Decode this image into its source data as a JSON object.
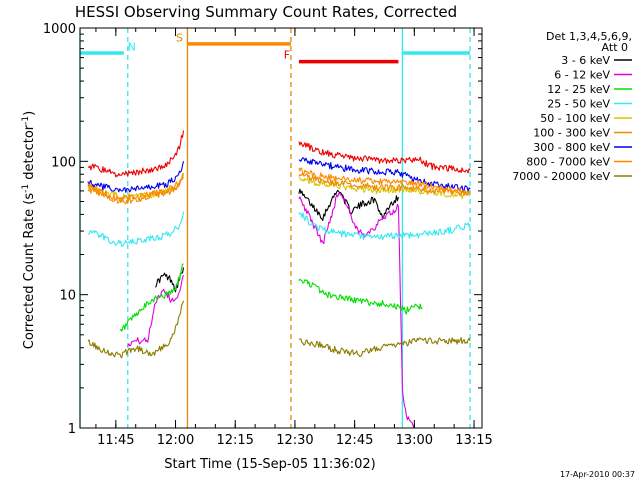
{
  "chart_data": {
    "type": "line",
    "title": "HESSI Observing Summary Count Rates, Corrected",
    "xlabel": "Start Time (15-Sep-05 11:36:02)",
    "ylabel_parts": [
      "Corrected Count Rate (s",
      "-1",
      " detector",
      "-1",
      ")"
    ],
    "yscale": "log",
    "ylim": [
      1,
      1000
    ],
    "xlim": [
      "11:36",
      "13:17"
    ],
    "x_ticks": [
      "11:45",
      "12:00",
      "12:15",
      "12:30",
      "12:45",
      "13:00",
      "13:15"
    ],
    "y_ticks": [
      "1",
      "10",
      "100",
      "1000"
    ],
    "timestamp": "17-Apr-2010 00:37",
    "legend": {
      "position": "right",
      "header": [
        "Det 1,3,4,5,6,9,",
        "Att 0"
      ],
      "entries": [
        {
          "label": "3 - 6 keV",
          "color": "#000000"
        },
        {
          "label": "6 - 12 keV",
          "color": "#e000e0"
        },
        {
          "label": "12 - 25 keV",
          "color": "#00e000"
        },
        {
          "label": "25 - 50 keV",
          "color": "#33e8f0"
        },
        {
          "label": "50 - 100 keV",
          "color": "#d8c400"
        },
        {
          "label": "100 - 300 keV",
          "color": "#f08a00"
        },
        {
          "label": "300 - 800 keV",
          "color": "#0000ee"
        },
        {
          "label": "800 - 7000 keV",
          "color": "#ff8800"
        },
        {
          "label": "7000 - 20000 keV",
          "color": "#8b7d00"
        }
      ]
    },
    "segments": [
      {
        "from": "11:38",
        "to": "12:02"
      },
      {
        "from": "12:31",
        "to": "13:14"
      }
    ],
    "series": [
      {
        "name": "3 - 6 keV",
        "color": "#000000",
        "seg1": [
          [
            "11:55",
            12
          ],
          [
            "11:57",
            14
          ],
          [
            "11:59",
            13
          ],
          [
            "12:00",
            11
          ],
          [
            "12:01",
            13
          ],
          [
            "12:02",
            16
          ]
        ],
        "seg2": [
          [
            "12:31",
            60
          ],
          [
            "12:34",
            48
          ],
          [
            "12:37",
            38
          ],
          [
            "12:39",
            50
          ],
          [
            "12:41",
            62
          ],
          [
            "12:44",
            42
          ],
          [
            "12:47",
            48
          ],
          [
            "12:50",
            52
          ],
          [
            "12:52",
            38
          ],
          [
            "12:54",
            48
          ],
          [
            "12:56",
            54
          ]
        ]
      },
      {
        "name": "6 - 12 keV",
        "color": "#e000e0",
        "seg1": [
          [
            "11:48",
            4.3
          ],
          [
            "11:50",
            4.5
          ],
          [
            "11:53",
            4.5
          ],
          [
            "11:55",
            9
          ],
          [
            "11:57",
            11
          ],
          [
            "11:59",
            9
          ],
          [
            "12:01",
            10
          ],
          [
            "12:02",
            14
          ]
        ],
        "seg2": [
          [
            "12:31",
            55
          ],
          [
            "12:33",
            42
          ],
          [
            "12:35",
            32
          ],
          [
            "12:37",
            24
          ],
          [
            "12:39",
            38
          ],
          [
            "12:41",
            60
          ],
          [
            "12:43",
            48
          ],
          [
            "12:45",
            32
          ],
          [
            "12:47",
            28
          ],
          [
            "12:50",
            32
          ],
          [
            "12:53",
            40
          ],
          [
            "12:55",
            42
          ],
          [
            "12:56",
            48
          ],
          [
            "12:57",
            2
          ],
          [
            "12:58",
            1.2
          ],
          [
            "13:00",
            1
          ]
        ]
      },
      {
        "name": "12 - 25 keV",
        "color": "#00e000",
        "seg1": [
          [
            "11:46",
            5.2
          ],
          [
            "11:49",
            6.5
          ],
          [
            "11:52",
            8
          ],
          [
            "11:55",
            9.5
          ],
          [
            "11:58",
            10
          ],
          [
            "12:00",
            11
          ],
          [
            "12:02",
            17
          ]
        ],
        "seg2": [
          [
            "12:31",
            13
          ],
          [
            "12:34",
            12
          ],
          [
            "12:38",
            10
          ],
          [
            "12:42",
            9.5
          ],
          [
            "12:46",
            9
          ],
          [
            "12:50",
            8.6
          ],
          [
            "12:54",
            8.5
          ],
          [
            "12:58",
            7.5
          ],
          [
            "13:00",
            8.5
          ],
          [
            "13:02",
            8
          ]
        ]
      },
      {
        "name": "25 - 50 keV",
        "color": "#33e8f0",
        "seg1": [
          [
            "11:38",
            30
          ],
          [
            "11:41",
            28
          ],
          [
            "11:44",
            25
          ],
          [
            "11:47",
            24
          ],
          [
            "11:50",
            25
          ],
          [
            "11:53",
            26
          ],
          [
            "11:56",
            27
          ],
          [
            "11:59",
            29
          ],
          [
            "12:01",
            33
          ],
          [
            "12:02",
            42
          ]
        ],
        "seg2": [
          [
            "12:31",
            42
          ],
          [
            "12:34",
            34
          ],
          [
            "12:37",
            31
          ],
          [
            "12:40",
            29
          ],
          [
            "12:44",
            28
          ],
          [
            "12:48",
            27
          ],
          [
            "12:52",
            27
          ],
          [
            "12:56",
            28
          ],
          [
            "13:00",
            28
          ],
          [
            "13:04",
            29
          ],
          [
            "13:08",
            30
          ],
          [
            "13:12",
            32
          ],
          [
            "13:14",
            34
          ]
        ]
      },
      {
        "name": "50 - 100 keV",
        "color": "#d8c400",
        "seg1": [
          [
            "11:38",
            65
          ],
          [
            "11:42",
            58
          ],
          [
            "11:46",
            55
          ],
          [
            "11:50",
            54
          ],
          [
            "11:54",
            56
          ],
          [
            "11:58",
            60
          ],
          [
            "12:01",
            68
          ],
          [
            "12:02",
            80
          ]
        ],
        "seg2": [
          [
            "12:31",
            75
          ],
          [
            "12:36",
            68
          ],
          [
            "12:41",
            65
          ],
          [
            "12:46",
            62
          ],
          [
            "12:51",
            60
          ],
          [
            "12:56",
            62
          ],
          [
            "13:01",
            60
          ],
          [
            "13:06",
            58
          ],
          [
            "13:11",
            56
          ],
          [
            "13:14",
            55
          ]
        ]
      },
      {
        "name": "100 - 300 keV",
        "color": "#f08a00",
        "seg1": [
          [
            "11:38",
            62
          ],
          [
            "11:42",
            56
          ],
          [
            "11:46",
            50
          ],
          [
            "11:50",
            52
          ],
          [
            "11:54",
            55
          ],
          [
            "11:58",
            58
          ],
          [
            "12:01",
            66
          ],
          [
            "12:02",
            76
          ]
        ],
        "seg2": [
          [
            "12:31",
            80
          ],
          [
            "12:36",
            72
          ],
          [
            "12:41",
            68
          ],
          [
            "12:46",
            66
          ],
          [
            "12:51",
            64
          ],
          [
            "12:56",
            64
          ],
          [
            "13:01",
            62
          ],
          [
            "13:06",
            60
          ],
          [
            "13:11",
            58
          ],
          [
            "13:14",
            57
          ]
        ]
      },
      {
        "name": "300 - 800 keV",
        "color": "#0000ee",
        "seg1": [
          [
            "11:38",
            70
          ],
          [
            "11:42",
            64
          ],
          [
            "11:46",
            60
          ],
          [
            "11:50",
            62
          ],
          [
            "11:54",
            64
          ],
          [
            "11:58",
            68
          ],
          [
            "12:01",
            80
          ],
          [
            "12:02",
            100
          ]
        ],
        "seg2": [
          [
            "12:31",
            105
          ],
          [
            "12:36",
            96
          ],
          [
            "12:41",
            90
          ],
          [
            "12:46",
            86
          ],
          [
            "12:51",
            84
          ],
          [
            "12:56",
            82
          ],
          [
            "13:01",
            72
          ],
          [
            "13:06",
            66
          ],
          [
            "13:11",
            63
          ],
          [
            "13:14",
            62
          ]
        ]
      },
      {
        "name": "800 - 7000 keV",
        "color": "#ff8800",
        "seg1": [
          [
            "11:38",
            66
          ],
          [
            "11:42",
            58
          ],
          [
            "11:46",
            52
          ],
          [
            "11:50",
            54
          ],
          [
            "11:54",
            57
          ],
          [
            "11:58",
            60
          ],
          [
            "12:01",
            70
          ],
          [
            "12:02",
            82
          ]
        ],
        "seg2": [
          [
            "12:31",
            85
          ],
          [
            "12:36",
            78
          ],
          [
            "12:41",
            74
          ],
          [
            "12:46",
            72
          ],
          [
            "12:51",
            70
          ],
          [
            "12:56",
            70
          ],
          [
            "13:01",
            68
          ],
          [
            "13:06",
            64
          ],
          [
            "13:11",
            60
          ],
          [
            "13:14",
            59
          ]
        ]
      },
      {
        "name": "7000 - 20000 keV",
        "color": "#8b7d00",
        "seg1": [
          [
            "11:38",
            4.5
          ],
          [
            "11:42",
            3.8
          ],
          [
            "11:46",
            3.5
          ],
          [
            "11:50",
            4.0
          ],
          [
            "11:54",
            3.6
          ],
          [
            "11:58",
            4.2
          ],
          [
            "12:00",
            5.5
          ],
          [
            "12:02",
            9
          ]
        ],
        "seg2": [
          [
            "12:31",
            4.5
          ],
          [
            "12:36",
            4.2
          ],
          [
            "12:41",
            3.8
          ],
          [
            "12:46",
            3.6
          ],
          [
            "12:51",
            4.0
          ],
          [
            "12:56",
            4.2
          ],
          [
            "13:01",
            4.5
          ],
          [
            "13:06",
            4.5
          ],
          [
            "13:11",
            4.5
          ],
          [
            "13:14",
            4.5
          ]
        ]
      },
      {
        "name": "",
        "color": "#ee0000",
        "seg1": [
          [
            "11:38",
            92
          ],
          [
            "11:41",
            88
          ],
          [
            "11:45",
            80
          ],
          [
            "11:49",
            82
          ],
          [
            "11:53",
            86
          ],
          [
            "11:57",
            92
          ],
          [
            "12:00",
            110
          ],
          [
            "12:01",
            130
          ],
          [
            "12:02",
            170
          ]
        ],
        "seg2": [
          [
            "12:31",
            140
          ],
          [
            "12:36",
            118
          ],
          [
            "12:41",
            110
          ],
          [
            "12:46",
            105
          ],
          [
            "12:51",
            102
          ],
          [
            "12:56",
            100
          ],
          [
            "13:01",
            104
          ],
          [
            "13:04",
            92
          ],
          [
            "13:09",
            88
          ],
          [
            "13:14",
            86
          ]
        ]
      }
    ],
    "annotations": {
      "top_bars": [
        {
          "from": "11:36",
          "to": "11:47",
          "y": 650,
          "color": "#33e8f0"
        },
        {
          "from": "12:03",
          "to": "12:29",
          "y": 760,
          "color": "#ff8800"
        },
        {
          "from": "12:31",
          "to": "12:56",
          "y": 560,
          "color": "#ee0000"
        },
        {
          "from": "12:57",
          "to": "13:14",
          "y": 650,
          "color": "#33e8f0"
        }
      ],
      "vlines": [
        {
          "t": "11:36",
          "color": "#33e8f0",
          "style": "solid"
        },
        {
          "t": "11:48",
          "color": "#33e8f0",
          "style": "dashed"
        },
        {
          "t": "12:03",
          "color": "#e08a00",
          "style": "solid"
        },
        {
          "t": "12:29",
          "color": "#e08a00",
          "style": "dashed"
        },
        {
          "t": "12:57",
          "color": "#33e8f0",
          "style": "solid"
        },
        {
          "t": "13:14",
          "color": "#33e8f0",
          "style": "dashed"
        }
      ],
      "letters": [
        {
          "text": "N",
          "t": "11:49",
          "y": 680,
          "color": "#33e8f0"
        },
        {
          "text": "S",
          "t": "12:01",
          "y": 790,
          "color": "#e08a00"
        },
        {
          "text": "F",
          "t": "12:28",
          "y": 590,
          "color": "#ee0000"
        }
      ]
    }
  }
}
